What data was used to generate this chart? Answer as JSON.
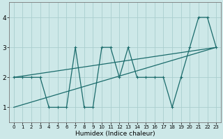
{
  "xlabel": "Humidex (Indice chaleur)",
  "xlim": [
    -0.5,
    23.5
  ],
  "ylim": [
    0.5,
    4.5
  ],
  "yticks": [
    1,
    2,
    3,
    4
  ],
  "xticks": [
    0,
    1,
    2,
    3,
    4,
    5,
    6,
    7,
    8,
    9,
    10,
    11,
    12,
    13,
    14,
    15,
    16,
    17,
    18,
    19,
    20,
    21,
    22,
    23
  ],
  "bg_color": "#cde8e8",
  "grid_color": "#aacece",
  "line_color": "#1a6b6b",
  "line1_x": [
    0,
    1,
    2,
    3,
    4,
    5,
    6,
    7,
    8,
    9,
    10,
    11,
    12,
    13,
    14,
    15,
    16,
    17,
    18,
    19,
    20,
    21,
    22,
    23
  ],
  "line1_y": [
    2,
    2,
    2,
    2,
    1,
    1,
    1,
    3,
    1,
    1,
    3,
    3,
    2,
    3,
    2,
    2,
    2,
    2,
    1,
    2,
    3,
    4,
    4,
    3
  ],
  "line2_x": [
    0,
    23
  ],
  "line2_y": [
    1,
    3
  ],
  "line3_x": [
    0,
    23
  ],
  "line3_y": [
    2,
    3
  ]
}
